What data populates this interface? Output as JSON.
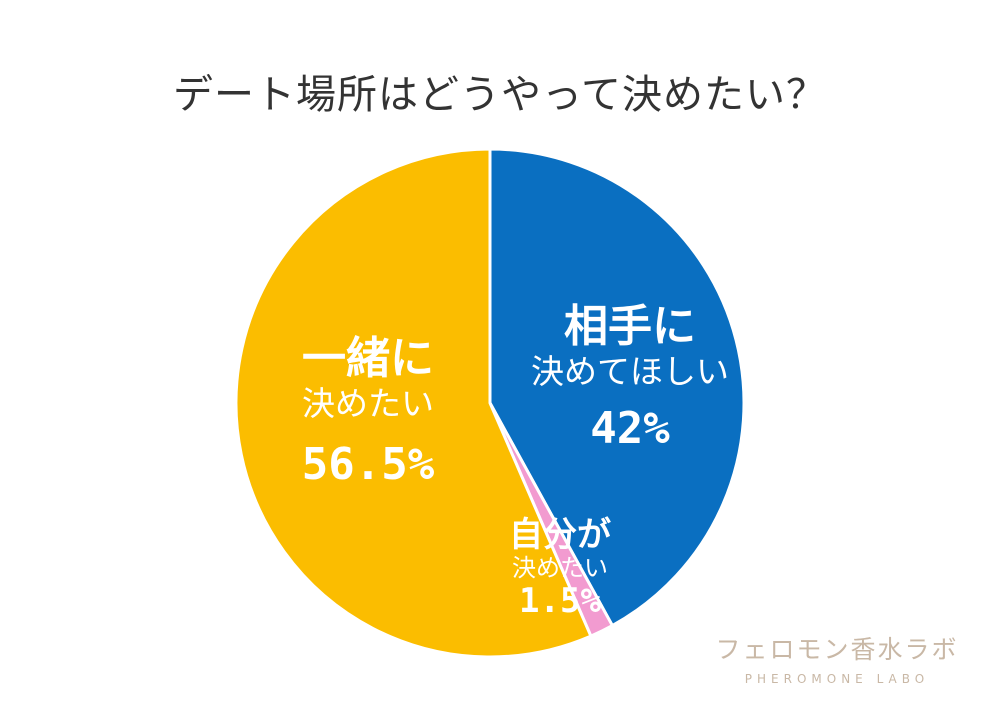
{
  "chart_data": {
    "type": "pie",
    "title": "デート場所はどうやって決めたい？",
    "slices": [
      {
        "name": "相手に決めてほしい",
        "value": 42,
        "label_line1": "相手に",
        "label_line2": "決めてほしい",
        "label_pct": "42%",
        "color": "#0a6fc1"
      },
      {
        "name": "自分が決めたい",
        "value": 1.5,
        "label_line1": "自分が",
        "label_line2": "決めたい",
        "label_pct": "1.5%",
        "color": "#f29bd0"
      },
      {
        "name": "一緒に決めたい",
        "value": 56.5,
        "label_line1": "一緒に",
        "label_line2": "決めたい",
        "label_pct": "56.5%",
        "color": "#fbbd00"
      }
    ],
    "start_angle": "12 o'clock",
    "direction": "clockwise"
  },
  "watermark": {
    "name": "フェロモン香水ラボ",
    "subtitle": "PHEROMONE LABO"
  }
}
